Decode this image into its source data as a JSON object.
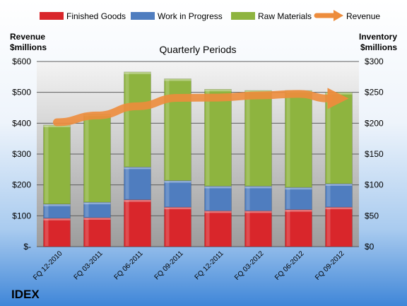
{
  "chart_data": {
    "type": "bar",
    "title": "Quarterly Periods",
    "brand": "IDEX",
    "left_axis": {
      "label_line1": "Revenue",
      "label_line2": "$millions",
      "min": 0,
      "max": 600,
      "step": 100,
      "tick_labels": [
        "$-",
        "$100",
        "$200",
        "$300",
        "$400",
        "$500",
        "$600"
      ]
    },
    "right_axis": {
      "label_line1": "Inventory",
      "label_line2": "$millions",
      "min": 0,
      "max": 300,
      "step": 50,
      "tick_labels": [
        "$0",
        "$50",
        "$100",
        "$150",
        "$200",
        "$250",
        "$300"
      ]
    },
    "categories": [
      "FQ 12-2010",
      "FQ 03-2011",
      "FQ 06-2011",
      "FQ 09-2011",
      "FQ 12-2011",
      "FQ 03-2012",
      "FQ 06-2012",
      "FQ 09-2012"
    ],
    "grid": true,
    "legend_position": "top",
    "series": [
      {
        "name": "Finished Goods",
        "type": "bar",
        "axis": "right",
        "color": "#d9262b",
        "values": [
          46,
          47,
          76,
          64,
          58,
          58,
          60,
          64
        ]
      },
      {
        "name": "Work in Progress",
        "type": "bar",
        "axis": "right",
        "color": "#4f7dbf",
        "values": [
          23,
          25,
          53,
          43,
          40,
          40,
          36,
          38
        ]
      },
      {
        "name": "Raw Materials",
        "type": "bar",
        "axis": "right",
        "color": "#8eb43f",
        "values": [
          128,
          143,
          154,
          165,
          157,
          155,
          157,
          148
        ]
      },
      {
        "name": "Revenue",
        "type": "line",
        "axis": "left",
        "color": "#ed8c3c",
        "values": [
          403,
          425,
          455,
          482,
          483,
          490,
          495,
          480
        ]
      }
    ]
  }
}
